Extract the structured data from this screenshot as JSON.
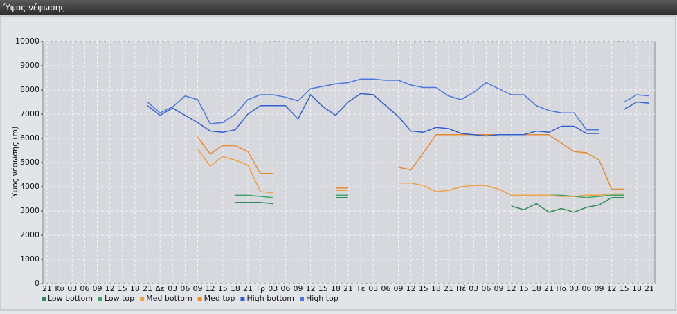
{
  "window_title": "Ύψος νέφωσης",
  "chart_data": {
    "type": "line",
    "y_label": "Ύψος νέφωσης (m)",
    "categories": [
      "21",
      "Κυ",
      "03",
      "06",
      "09",
      "12",
      "15",
      "18",
      "21",
      "Δε",
      "03",
      "06",
      "09",
      "12",
      "15",
      "18",
      "21",
      "Τρ",
      "03",
      "06",
      "09",
      "12",
      "15",
      "18",
      "21",
      "Τε",
      "03",
      "06",
      "09",
      "12",
      "15",
      "18",
      "21",
      "Πέ",
      "03",
      "06",
      "09",
      "12",
      "15",
      "18",
      "21",
      "Πα",
      "03",
      "06",
      "09",
      "12",
      "15",
      "18",
      "21"
    ],
    "ylim": [
      0,
      10000
    ],
    "yticks": [
      0,
      1000,
      2000,
      3000,
      4000,
      5000,
      6000,
      7000,
      8000,
      9000,
      10000
    ],
    "grid": true,
    "series": [
      {
        "name": "Low bottom",
        "color": "#2e8b57",
        "values": [
          null,
          null,
          null,
          null,
          null,
          null,
          null,
          null,
          null,
          null,
          null,
          null,
          null,
          null,
          null,
          3350,
          3350,
          3350,
          3300,
          null,
          null,
          null,
          null,
          3550,
          3550,
          null,
          null,
          null,
          null,
          null,
          null,
          null,
          null,
          null,
          null,
          null,
          null,
          3200,
          3050,
          3300,
          2950,
          3100,
          2950,
          3150,
          3250,
          3550,
          3550,
          null,
          null
        ]
      },
      {
        "name": "Low top",
        "color": "#3aa868",
        "values": [
          null,
          null,
          null,
          null,
          null,
          null,
          null,
          null,
          null,
          null,
          null,
          null,
          null,
          null,
          null,
          3650,
          3650,
          3600,
          3550,
          null,
          null,
          null,
          null,
          3650,
          3650,
          null,
          null,
          null,
          null,
          null,
          null,
          null,
          null,
          null,
          null,
          null,
          null,
          3650,
          3650,
          3650,
          3650,
          3650,
          3600,
          3550,
          3600,
          3650,
          3650,
          null,
          null
        ]
      },
      {
        "name": "Med bottom",
        "color": "#f0a040",
        "values": [
          null,
          null,
          null,
          null,
          null,
          null,
          null,
          null,
          null,
          null,
          null,
          null,
          5550,
          4850,
          5250,
          5100,
          4900,
          3800,
          3750,
          null,
          null,
          null,
          null,
          3850,
          3850,
          null,
          null,
          null,
          4150,
          4150,
          4050,
          3800,
          3850,
          4000,
          4050,
          4050,
          3900,
          3650,
          3650,
          3650,
          3650,
          3600,
          3600,
          3650,
          3650,
          3700,
          3700,
          null,
          null
        ]
      },
      {
        "name": "Med top",
        "color": "#e88a2a",
        "values": [
          null,
          null,
          null,
          null,
          null,
          null,
          null,
          null,
          null,
          null,
          null,
          null,
          6050,
          5350,
          5700,
          5700,
          5450,
          4550,
          4550,
          null,
          null,
          null,
          null,
          3950,
          3950,
          null,
          null,
          null,
          4800,
          4700,
          5400,
          6150,
          6150,
          6150,
          6150,
          6150,
          6150,
          6150,
          6150,
          6150,
          6150,
          5800,
          5450,
          5400,
          5100,
          3900,
          3900,
          null,
          null
        ]
      },
      {
        "name": "High bottom",
        "color": "#2f5fd0",
        "values": [
          null,
          null,
          null,
          null,
          null,
          null,
          null,
          null,
          7350,
          6950,
          7250,
          6950,
          6650,
          6300,
          6250,
          6350,
          7000,
          7350,
          7350,
          7350,
          6800,
          7800,
          7300,
          6950,
          7500,
          7850,
          7800,
          7350,
          6900,
          6300,
          6250,
          6450,
          6400,
          6200,
          6150,
          6100,
          6150,
          6150,
          6150,
          6300,
          6250,
          6500,
          6500,
          6200,
          6200,
          null,
          7200,
          7500,
          7450
        ]
      },
      {
        "name": "High top",
        "color": "#4a78e0",
        "values": [
          null,
          null,
          null,
          null,
          null,
          null,
          null,
          null,
          7500,
          7050,
          7300,
          7750,
          7600,
          6600,
          6650,
          7000,
          7600,
          7800,
          7800,
          7700,
          7550,
          8050,
          8150,
          8250,
          8300,
          8450,
          8450,
          8400,
          8400,
          8200,
          8100,
          8100,
          7750,
          7600,
          7900,
          8300,
          8050,
          7800,
          7800,
          7350,
          7150,
          7050,
          7050,
          6350,
          6350,
          null,
          7500,
          7800,
          7750
        ]
      }
    ]
  }
}
